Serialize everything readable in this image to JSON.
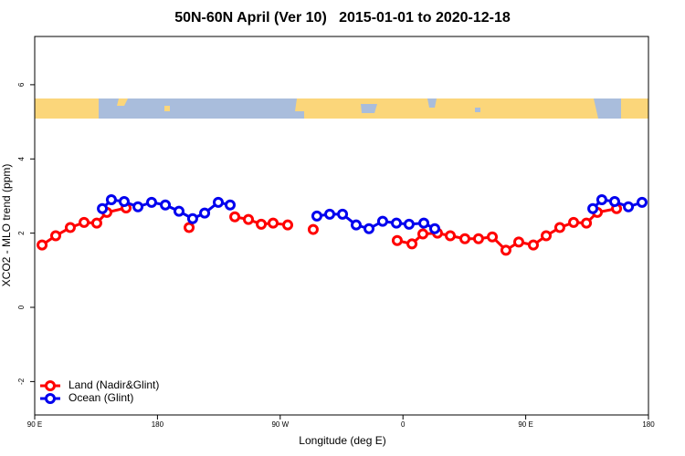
{
  "chart_data": {
    "type": "line",
    "title": "50N-60N April (Ver 10)   2015-01-01 to 2020-12-18",
    "x_label": "Longitude (deg E)",
    "y_label": "XCO2 - MLO trend (ppm)",
    "xlim": [
      90,
      540
    ],
    "xticks": [
      {
        "value": 90,
        "label": "90 E"
      },
      180,
      {
        "value": 270,
        "label": "90 W"
      },
      {
        "value": 360,
        "label": "0"
      },
      {
        "value": 450,
        "label": "90 E"
      },
      {
        "value": 540,
        "label": "180"
      }
    ],
    "ylim": [
      -2.9,
      7.3
    ],
    "yticks": [
      -2,
      0,
      2,
      4,
      6
    ],
    "legend": "bottom-left",
    "series": [
      {
        "name": "Land (Nadir&Glint)",
        "color": "#ff0000",
        "x": [
          95.4,
          105.4,
          116.1,
          126.2,
          135.5,
          142.9,
          157,
          null,
          203.2,
          null,
          236.7,
          246.7,
          256.1,
          264.8,
          275.5,
          null,
          294.2,
          null,
          355.8,
          366.6,
          374.6,
          385.3,
          394.7,
          405.4,
          415.4,
          425.5,
          435.5,
          444.9,
          455.6,
          465,
          475,
          485.1,
          494.5,
          502.5,
          516.6
        ],
        "values": [
          1.68,
          1.93,
          2.15,
          2.29,
          2.27,
          2.56,
          2.68,
          null,
          2.15,
          null,
          2.44,
          2.37,
          2.24,
          2.27,
          2.22,
          null,
          2.1,
          null,
          1.8,
          1.71,
          1.98,
          2.0,
          1.93,
          1.85,
          1.85,
          1.9,
          1.54,
          1.76,
          1.68,
          1.93,
          2.15,
          2.29,
          2.27,
          2.56,
          2.66
        ]
      },
      {
        "name": "Ocean (Glint)",
        "color": "#0000ee",
        "x": [
          139.6,
          146.2,
          155.6,
          165.7,
          175.7,
          185.8,
          195.8,
          205.8,
          214.6,
          224.6,
          233.3,
          null,
          296.9,
          306.3,
          315.7,
          325.7,
          335.1,
          345.1,
          355.2,
          364.5,
          375.3,
          383.3,
          null,
          499.2,
          505.8,
          515.2,
          525.3,
          535.3
        ],
        "values": [
          2.66,
          2.9,
          2.85,
          2.71,
          2.83,
          2.76,
          2.59,
          2.39,
          2.54,
          2.83,
          2.76,
          null,
          2.46,
          2.51,
          2.51,
          2.22,
          2.12,
          2.32,
          2.27,
          2.24,
          2.27,
          2.12,
          null,
          2.66,
          2.9,
          2.85,
          2.71,
          2.83
        ]
      }
    ]
  }
}
